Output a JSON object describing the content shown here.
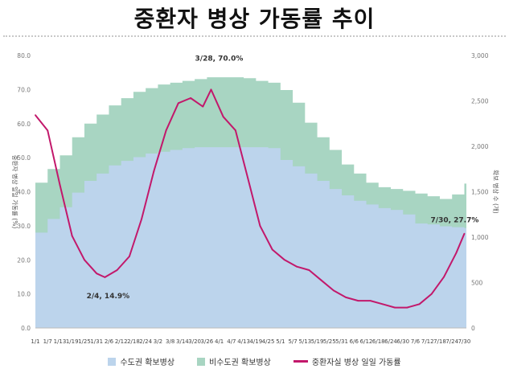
{
  "title": "중환자 병상 가동률 추이",
  "chart_data": {
    "type": "area",
    "title": "중환자 병상 가동률 추이",
    "ylabel_left": "중환자 병상 일일 가동률 (%)",
    "ylabel_right": "확보 병상 수 (개)",
    "ylim_left": [
      0,
      80
    ],
    "ylim_right": [
      0,
      3000
    ],
    "y_ticks_left": [
      "0.0",
      "10.0",
      "20.0",
      "30.0",
      "40.0",
      "50.0",
      "60.0",
      "70.0",
      "80.0"
    ],
    "y_ticks_right": [
      "0",
      "500",
      "1,000",
      "1,500",
      "2,000",
      "2,500",
      "3,000"
    ],
    "x_ticks": [
      "1/1",
      "1/7",
      "1/13",
      "1/19",
      "1/25",
      "1/31",
      "2/6",
      "2/12",
      "2/18",
      "2/24",
      "3/2",
      "3/8",
      "3/14",
      "3/20",
      "3/26",
      "4/1",
      "4/7",
      "4/13",
      "4/19",
      "4/25",
      "5/1",
      "5/7",
      "5/13",
      "5/19",
      "5/25",
      "5/31",
      "6/6",
      "6/12",
      "6/18",
      "6/24",
      "6/30",
      "7/6",
      "7/12",
      "7/18",
      "7/24",
      "7/30"
    ],
    "legend_position": "bottom",
    "series": [
      {
        "name": "수도권 확보병상",
        "type": "area",
        "axis": "right",
        "color": "#bcd4ec",
        "x": [
          "1/1",
          "1/7",
          "1/13",
          "1/19",
          "1/25",
          "1/31",
          "2/6",
          "2/12",
          "2/18",
          "2/24",
          "3/2",
          "3/8",
          "3/14",
          "3/20",
          "3/26",
          "4/1",
          "4/7",
          "4/13",
          "4/19",
          "4/25",
          "5/1",
          "5/7",
          "5/13",
          "5/19",
          "5/25",
          "5/31",
          "6/6",
          "6/12",
          "6/18",
          "6/24",
          "6/30",
          "7/6",
          "7/12",
          "7/18",
          "7/24",
          "7/30"
        ],
        "values": [
          1050,
          1200,
          1330,
          1490,
          1620,
          1700,
          1790,
          1840,
          1880,
          1920,
          1940,
          1960,
          1980,
          1990,
          1990,
          1990,
          1990,
          1990,
          1990,
          1980,
          1850,
          1780,
          1700,
          1620,
          1530,
          1460,
          1400,
          1360,
          1320,
          1300,
          1250,
          1150,
          1140,
          1120,
          1110,
          1100
        ]
      },
      {
        "name": "비수도권 확보병상",
        "type": "area",
        "axis": "right",
        "color": "#a8d5c2",
        "x": [
          "1/1",
          "1/7",
          "1/13",
          "1/19",
          "1/25",
          "1/31",
          "2/6",
          "2/12",
          "2/18",
          "2/24",
          "3/2",
          "3/8",
          "3/14",
          "3/20",
          "3/26",
          "4/1",
          "4/7",
          "4/13",
          "4/19",
          "4/25",
          "5/1",
          "5/7",
          "5/13",
          "5/19",
          "5/25",
          "5/31",
          "6/6",
          "6/12",
          "6/18",
          "6/24",
          "6/30",
          "7/6",
          "7/12",
          "7/18",
          "7/24",
          "7/30"
        ],
        "values": [
          1600,
          1750,
          1900,
          2100,
          2250,
          2350,
          2450,
          2530,
          2600,
          2640,
          2680,
          2700,
          2720,
          2740,
          2760,
          2760,
          2760,
          2750,
          2720,
          2700,
          2620,
          2480,
          2260,
          2100,
          1960,
          1800,
          1700,
          1600,
          1550,
          1530,
          1510,
          1480,
          1450,
          1420,
          1470,
          1590
        ]
      },
      {
        "name": "중환자실 병상 일일 가동률",
        "type": "line",
        "axis": "left",
        "color": "#c2186b",
        "x": [
          "1/1",
          "1/7",
          "1/13",
          "1/19",
          "1/25",
          "1/31",
          "2/4",
          "2/10",
          "2/16",
          "2/22",
          "2/28",
          "3/6",
          "3/12",
          "3/18",
          "3/24",
          "3/28",
          "4/3",
          "4/9",
          "4/15",
          "4/21",
          "4/27",
          "5/3",
          "5/9",
          "5/15",
          "5/21",
          "5/27",
          "6/2",
          "6/8",
          "6/14",
          "6/20",
          "6/26",
          "7/2",
          "7/8",
          "7/14",
          "7/20",
          "7/26",
          "7/30"
        ],
        "values": [
          62.5,
          58,
          42,
          27,
          20,
          16,
          14.9,
          17,
          21,
          32,
          46,
          58,
          66,
          67.5,
          65,
          70.0,
          62,
          58,
          44,
          30,
          23,
          20,
          18,
          17,
          14,
          11,
          9,
          8,
          8,
          7,
          6,
          6,
          7,
          10,
          15,
          22,
          27.7
        ]
      }
    ],
    "annotations": [
      {
        "label": "3/28, 70.0%",
        "x": "3/28",
        "y": 70.0
      },
      {
        "label": "2/4, 14.9%",
        "x": "2/4",
        "y": 14.9
      },
      {
        "label": "7/30, 27.7%",
        "x": "7/30",
        "y": 27.7
      }
    ]
  }
}
